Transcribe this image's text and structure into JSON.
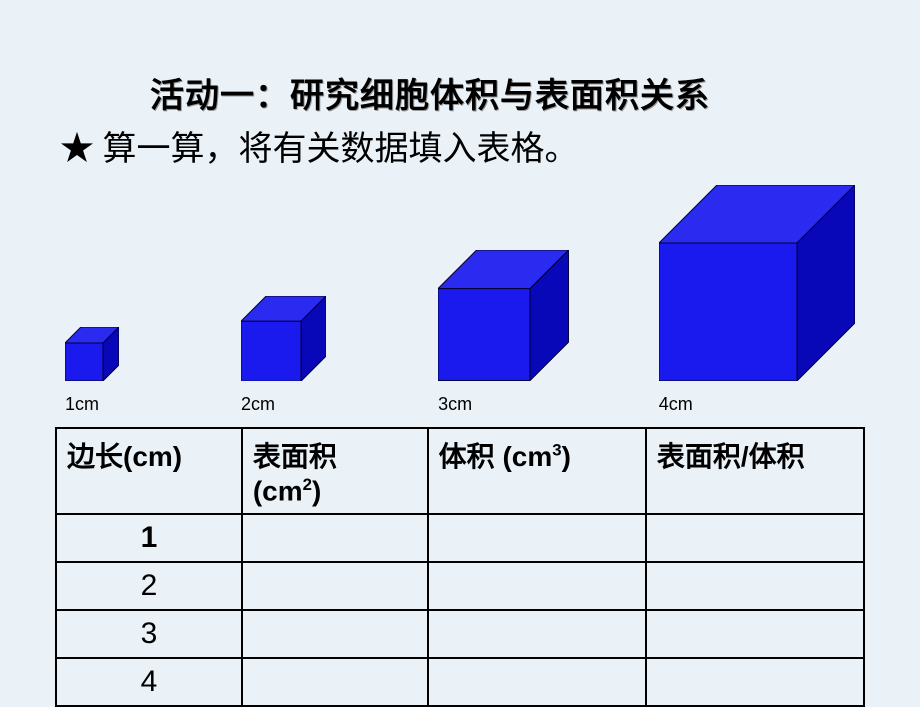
{
  "title": "活动一：研究细胞体积与表面积关系",
  "subtitle": "★ 算一算，将有关数据填入表格。",
  "cubes": [
    {
      "label": "1cm",
      "size": 38,
      "left_offset": 0,
      "gap_after": 122
    },
    {
      "label": "2cm",
      "size": 60,
      "left_offset": 0,
      "gap_after": 112
    },
    {
      "label": "3cm",
      "size": 92,
      "left_offset": 0,
      "gap_after": 90
    },
    {
      "label": "4cm",
      "size": 138,
      "left_offset": 0,
      "gap_after": 0
    }
  ],
  "cube_style": {
    "front_fill": "#1a1aee",
    "top_fill": "#2a2af0",
    "side_fill": "#0808b8",
    "stroke": "#000030",
    "stroke_width": 1,
    "depth_ratio": 0.42
  },
  "table": {
    "headers": {
      "col1_prefix": "边长",
      "col1_unit": "(cm)",
      "col2_prefix": "表面积",
      "col2_unit_open": "(cm",
      "col2_sup": "2",
      "col2_unit_close": ")",
      "col3_prefix": "体积 ",
      "col3_unit_open": "(cm",
      "col3_sup": "3",
      "col3_unit_close": ")",
      "col4": "表面积/体积"
    },
    "rows": [
      {
        "edge": "1",
        "bold": true
      },
      {
        "edge": "2",
        "bold": false
      },
      {
        "edge": "3",
        "bold": false
      },
      {
        "edge": "4",
        "bold": false
      }
    ]
  }
}
